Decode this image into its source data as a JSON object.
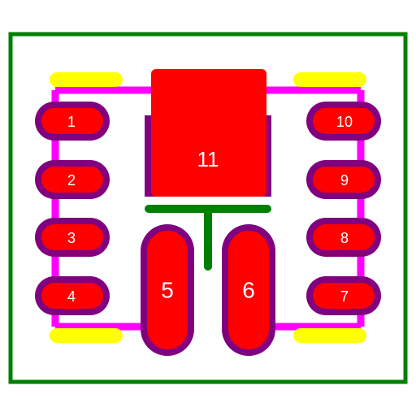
{
  "colors": {
    "background": "#ffffff",
    "board_outline": "#008000",
    "silkscreen": "#ff00ff",
    "courtyard_marks": "#ffff00",
    "pad_fill": "#ff0000",
    "pad_outline": "#800080",
    "thermal_pad_text": "#ffffff",
    "center_mark": "#008000"
  },
  "pads": {
    "p1": "1",
    "p2": "2",
    "p3": "3",
    "p4": "4",
    "p5": "5",
    "p6": "6",
    "p7": "7",
    "p8": "8",
    "p9": "9",
    "p10": "10",
    "p11": "11"
  }
}
